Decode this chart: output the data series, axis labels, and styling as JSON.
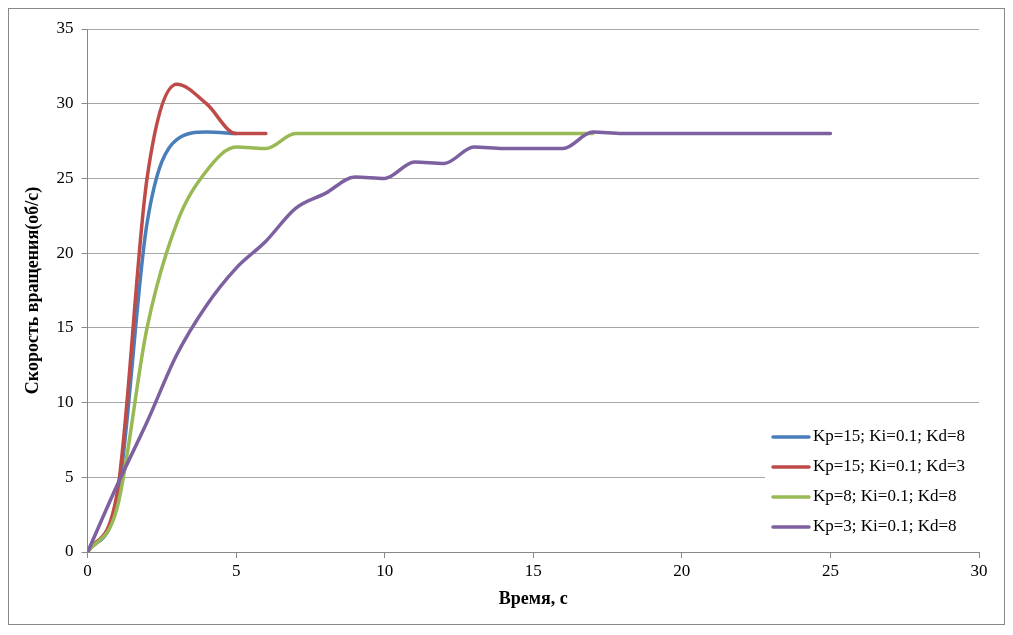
{
  "chart_data": {
    "type": "line",
    "xlabel": "Время, с",
    "ylabel": "Скорость вращения(об/с)",
    "x": [
      0,
      1,
      2,
      3,
      4,
      5,
      6,
      7,
      8,
      9,
      10,
      11,
      12,
      13,
      14,
      15,
      16,
      17,
      18,
      19,
      20,
      21,
      22,
      23,
      24,
      25
    ],
    "series": [
      {
        "name": "Kp=15; Ki=0.1; Kd=8",
        "color": "#4a7ebb",
        "values": [
          0,
          3.5,
          22,
          27.6,
          28.1,
          28,
          null,
          null,
          null,
          null,
          null,
          null,
          null,
          null,
          null,
          null,
          null,
          null,
          null,
          null,
          null,
          null,
          null,
          null,
          null,
          null
        ]
      },
      {
        "name": "Kp=15; Ki=0.1; Kd=3",
        "color": "#be4b48",
        "values": [
          0,
          4,
          25,
          31.3,
          30,
          28,
          28,
          null,
          null,
          null,
          null,
          null,
          null,
          null,
          null,
          null,
          null,
          null,
          null,
          null,
          null,
          null,
          null,
          null,
          null,
          null
        ]
      },
      {
        "name": "Kp=8; Ki=0.1; Kd=8",
        "color": "#98b954",
        "values": [
          0,
          3,
          15,
          22,
          25.5,
          27.1,
          27,
          28,
          28,
          28,
          28,
          28,
          28,
          28,
          28,
          28,
          28,
          28,
          null,
          null,
          null,
          null,
          null,
          null,
          null,
          null
        ]
      },
      {
        "name": "Kp=3; Ki=0.1; Kd=8",
        "color": "#7d60a0",
        "values": [
          0,
          4.5,
          8.7,
          13.2,
          16.5,
          19,
          20.8,
          23,
          24,
          25.1,
          25,
          26.1,
          26,
          27.1,
          27,
          27,
          27,
          28.1,
          28,
          28,
          28,
          28,
          28,
          28,
          28,
          28
        ]
      }
    ],
    "xlim": [
      0,
      30
    ],
    "xticks": [
      0,
      5,
      10,
      15,
      20,
      25,
      30
    ],
    "ylim": [
      0,
      35
    ],
    "yticks": [
      0,
      5,
      10,
      15,
      20,
      25,
      30,
      35
    ],
    "grid": "y",
    "legend": "bottom right",
    "marker": "none",
    "line_style": "solid"
  }
}
